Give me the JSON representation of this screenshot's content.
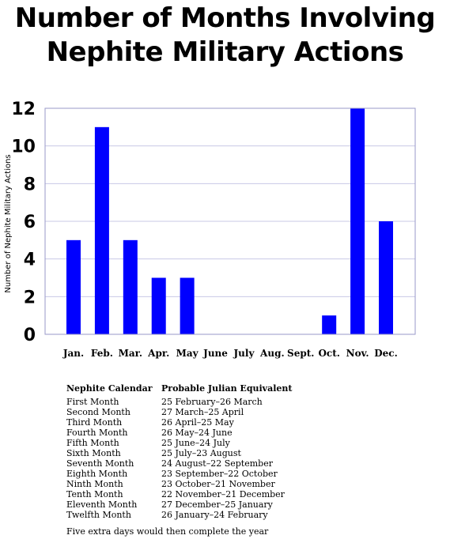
{
  "title": {
    "line1": "Number of Months Involving",
    "line2": "Nephite Military Actions"
  },
  "colors": {
    "bar": "#0000ff",
    "grid": "#c8c8e6",
    "axis": "#9a9ac8"
  },
  "chart_data": {
    "type": "bar",
    "title": "Number of Months Involving Nephite Military Actions",
    "ylabel": "Number of Nephite Military Actions",
    "xlabel": "",
    "categories": [
      "Jan.",
      "Feb.",
      "Mar.",
      "Apr.",
      "May",
      "June",
      "July",
      "Aug.",
      "Sept.",
      "Oct.",
      "Nov.",
      "Dec."
    ],
    "values": [
      5,
      11,
      5,
      3,
      3,
      0,
      0,
      0,
      0,
      1,
      12,
      6
    ],
    "ylim": [
      0,
      12
    ],
    "yticks": [
      "0",
      "2",
      "4",
      "6",
      "8",
      "10",
      "12"
    ],
    "grid": true
  },
  "calendar": {
    "header_left": "Nephite Calendar",
    "header_right": "Probable Julian Equivalent",
    "rows": [
      {
        "month": "First Month",
        "julian": "25 February–26 March"
      },
      {
        "month": "Second Month",
        "julian": "27 March–25 April"
      },
      {
        "month": "Third Month",
        "julian": "26 April–25 May"
      },
      {
        "month": "Fourth Month",
        "julian": "26 May–24 June"
      },
      {
        "month": "Fifth Month",
        "julian": "25 June–24 July"
      },
      {
        "month": "Sixth Month",
        "julian": "25 July–23 August"
      },
      {
        "month": "Seventh Month",
        "julian": "24 August–22 September"
      },
      {
        "month": "Eighth Month",
        "julian": "23 September–22 October"
      },
      {
        "month": "Ninth Month",
        "julian": "23 October–21 November"
      },
      {
        "month": "Tenth Month",
        "julian": "22 November–21 December"
      },
      {
        "month": "Eleventh Month",
        "julian": "27 December–25 January"
      },
      {
        "month": "Twelfth Month",
        "julian": "26 January–24 February"
      }
    ],
    "note": "Five extra days would then complete the year"
  }
}
